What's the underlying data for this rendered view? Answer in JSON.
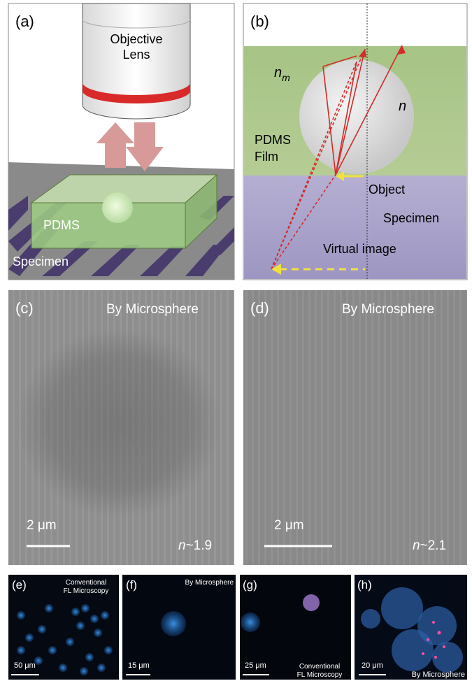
{
  "panel_a": {
    "label": "(a)",
    "objective_lens": [
      "Objective",
      "Lens"
    ],
    "film": "PDMS",
    "specimen": "Specimen"
  },
  "panel_b": {
    "label": "(b)",
    "medium_index": {
      "symbol": "n",
      "subscript": "m"
    },
    "sphere_index": "n",
    "film": [
      "PDMS",
      "Film"
    ],
    "object": "Object",
    "specimen": "Specimen",
    "virtual_image": "Virtual image"
  },
  "panel_c": {
    "label": "(c)",
    "caption": "By Microsphere",
    "scale_bar": "2 μm",
    "index": {
      "symbol": "n",
      "value": "~1.9"
    }
  },
  "panel_d": {
    "label": "(d)",
    "caption": "By Microsphere",
    "scale_bar": "2 μm",
    "index": {
      "symbol": "n",
      "value": "~2.1"
    }
  },
  "panel_e": {
    "label": "(e)",
    "caption": [
      "Conventional",
      "FL Microscopy"
    ],
    "scale_bar": "50 μm"
  },
  "panel_f": {
    "label": "(f)",
    "caption": "By Microsphere",
    "scale_bar": "15 μm"
  },
  "panel_g": {
    "label": "(g)",
    "scale_bar": "25 μm",
    "caption": [
      "Conventional",
      "FL Microscopy"
    ]
  },
  "panel_h": {
    "label": "(h)",
    "scale_bar": "20 μm",
    "caption": "By Microsphere"
  }
}
